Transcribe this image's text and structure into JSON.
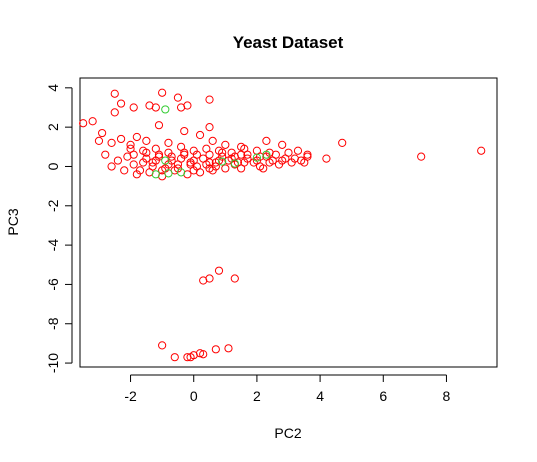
{
  "chart_data": {
    "type": "scatter",
    "title": "Yeast Dataset",
    "xlabel": "PC2",
    "ylabel": "PC3",
    "xlim": [
      -3.6,
      9.6
    ],
    "ylim": [
      -10.2,
      4.5
    ],
    "xticks": [
      -2,
      0,
      2,
      4,
      6,
      8
    ],
    "yticks": [
      4,
      2,
      0,
      -2,
      -4,
      -6,
      -8,
      -10
    ],
    "xtick_labels": [
      "-2",
      "0",
      "2",
      "4",
      "6",
      "8"
    ],
    "ytick_labels": [
      "4",
      "2",
      "0",
      "-2",
      "-4",
      "-6",
      "-8",
      "-10"
    ],
    "marker": "open-circle",
    "series": [
      {
        "color": "#ff0000",
        "points": [
          [
            -2.5,
            3.7
          ],
          [
            -1.0,
            3.75
          ],
          [
            -0.5,
            3.5
          ],
          [
            0.5,
            3.4
          ],
          [
            -2.3,
            3.2
          ],
          [
            -1.4,
            3.1
          ],
          [
            -1.9,
            3.0
          ],
          [
            -1.2,
            3.0
          ],
          [
            -0.4,
            3.0
          ],
          [
            -0.2,
            3.1
          ],
          [
            -2.5,
            2.75
          ],
          [
            -3.5,
            2.2
          ],
          [
            -3.2,
            2.3
          ],
          [
            -1.1,
            2.1
          ],
          [
            0.5,
            2.0
          ],
          [
            -2.9,
            1.7
          ],
          [
            -1.8,
            1.5
          ],
          [
            0.2,
            1.6
          ],
          [
            -0.3,
            1.8
          ],
          [
            4.7,
            1.2
          ],
          [
            -3.0,
            1.3
          ],
          [
            -2.6,
            1.2
          ],
          [
            -2.3,
            1.4
          ],
          [
            -2.0,
            1.1
          ],
          [
            -1.5,
            1.3
          ],
          [
            -0.8,
            1.2
          ],
          [
            0.6,
            1.3
          ],
          [
            1.0,
            1.1
          ],
          [
            1.5,
            1.0
          ],
          [
            2.3,
            1.3
          ],
          [
            2.8,
            1.1
          ],
          [
            3.3,
            0.8
          ],
          [
            3.6,
            0.6
          ],
          [
            4.2,
            0.4
          ],
          [
            7.2,
            0.5
          ],
          [
            9.1,
            0.8
          ],
          [
            -2.8,
            0.6
          ],
          [
            -2.4,
            0.3
          ],
          [
            -2.1,
            0.5
          ],
          [
            -1.9,
            0.1
          ],
          [
            -1.7,
            -0.2
          ],
          [
            -1.5,
            0.4
          ],
          [
            -1.3,
            0.0
          ],
          [
            -1.1,
            0.5
          ],
          [
            -0.9,
            -0.1
          ],
          [
            -0.7,
            0.3
          ],
          [
            -0.5,
            0.1
          ],
          [
            -0.3,
            0.6
          ],
          [
            -0.1,
            0.2
          ],
          [
            0.1,
            0.0
          ],
          [
            0.3,
            0.4
          ],
          [
            0.5,
            0.2
          ],
          [
            0.7,
            0.0
          ],
          [
            0.9,
            0.5
          ],
          [
            1.1,
            0.3
          ],
          [
            1.3,
            0.1
          ],
          [
            1.5,
            0.6
          ],
          [
            1.7,
            0.4
          ],
          [
            1.9,
            0.2
          ],
          [
            2.1,
            0.0
          ],
          [
            2.3,
            0.5
          ],
          [
            2.5,
            0.3
          ],
          [
            2.7,
            0.1
          ],
          [
            2.9,
            0.4
          ],
          [
            3.1,
            0.2
          ],
          [
            3.4,
            0.3
          ],
          [
            -2.0,
            0.9
          ],
          [
            -1.6,
            0.8
          ],
          [
            -1.2,
            0.9
          ],
          [
            -0.8,
            0.7
          ],
          [
            -0.4,
            1.0
          ],
          [
            0.0,
            0.8
          ],
          [
            0.4,
            0.9
          ],
          [
            0.8,
            0.8
          ],
          [
            1.2,
            0.7
          ],
          [
            1.6,
            0.9
          ],
          [
            2.0,
            0.8
          ],
          [
            2.4,
            0.7
          ],
          [
            -1.8,
            -0.4
          ],
          [
            -1.4,
            -0.3
          ],
          [
            -1.0,
            -0.5
          ],
          [
            -0.6,
            -0.2
          ],
          [
            -0.2,
            -0.4
          ],
          [
            0.2,
            -0.3
          ],
          [
            0.6,
            -0.2
          ],
          [
            1.0,
            -0.1
          ],
          [
            -2.2,
            -0.2
          ],
          [
            -2.6,
            0.0
          ],
          [
            -1.6,
            0.2
          ],
          [
            -1.2,
            0.3
          ],
          [
            -0.8,
            0.1
          ],
          [
            -0.4,
            0.4
          ],
          [
            0.0,
            0.3
          ],
          [
            0.4,
            0.1
          ],
          [
            0.8,
            0.3
          ],
          [
            1.2,
            0.4
          ],
          [
            1.6,
            0.2
          ],
          [
            2.0,
            0.3
          ],
          [
            2.4,
            0.2
          ],
          [
            2.8,
            0.3
          ],
          [
            3.2,
            0.4
          ],
          [
            3.6,
            0.5
          ],
          [
            -1.9,
            0.6
          ],
          [
            -1.5,
            0.7
          ],
          [
            -1.1,
            0.6
          ],
          [
            -0.7,
            0.5
          ],
          [
            -0.3,
            0.7
          ],
          [
            0.1,
            0.6
          ],
          [
            0.5,
            0.6
          ],
          [
            0.9,
            0.7
          ],
          [
            1.3,
            0.5
          ],
          [
            1.7,
            0.6
          ],
          [
            2.1,
            0.5
          ],
          [
            2.6,
            0.6
          ],
          [
            3.0,
            0.7
          ],
          [
            3.5,
            0.2
          ],
          [
            -1.0,
            -0.2
          ],
          [
            -0.5,
            -0.1
          ],
          [
            0.0,
            -0.2
          ],
          [
            0.5,
            -0.1
          ],
          [
            1.5,
            -0.1
          ],
          [
            2.2,
            -0.1
          ],
          [
            -1.3,
            0.2
          ],
          [
            -0.1,
            0.1
          ],
          [
            0.7,
            0.2
          ],
          [
            1.4,
            0.2
          ],
          [
            0.3,
            -5.8
          ],
          [
            0.5,
            -5.7
          ],
          [
            0.8,
            -5.3
          ],
          [
            1.3,
            -5.7
          ],
          [
            -1.0,
            -9.1
          ],
          [
            -0.6,
            -9.7
          ],
          [
            -0.2,
            -9.7
          ],
          [
            0.0,
            -9.6
          ],
          [
            0.2,
            -9.5
          ],
          [
            0.3,
            -9.55
          ],
          [
            0.7,
            -9.3
          ],
          [
            1.1,
            -9.25
          ],
          [
            -0.1,
            -9.7
          ]
        ]
      },
      {
        "color": "#33cc33",
        "points": [
          [
            -0.9,
            2.9
          ],
          [
            -0.9,
            0.3
          ],
          [
            -1.2,
            -0.4
          ],
          [
            -0.8,
            -0.35
          ],
          [
            -0.4,
            -0.3
          ],
          [
            0.9,
            0.25
          ],
          [
            1.3,
            0.15
          ],
          [
            2.0,
            0.45
          ],
          [
            2.3,
            0.6
          ]
        ]
      }
    ]
  }
}
